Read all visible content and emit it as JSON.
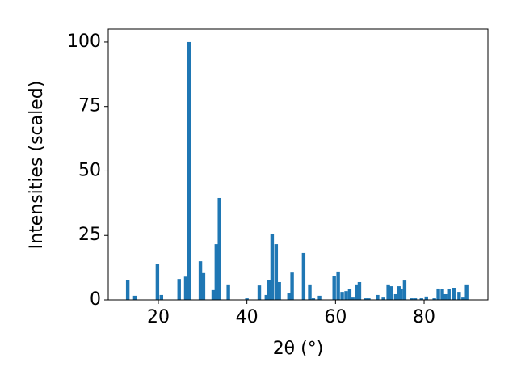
{
  "chart_data": {
    "type": "bar",
    "x_label": "2θ (°)",
    "y_label": "Intensities (scaled)",
    "color": "#1f77b4",
    "x": [
      13.1,
      14.7,
      19.8,
      20.7,
      24.7,
      26.2,
      26.9,
      29.5,
      30.2,
      32.4,
      33.1,
      33.8,
      35.8,
      40.0,
      42.8,
      44.4,
      45.0,
      45.7,
      46.6,
      47.3,
      49.5,
      50.2,
      52.8,
      54.2,
      55.0,
      56.4,
      59.7,
      60.6,
      61.5,
      62.4,
      63.2,
      63.9,
      64.8,
      65.4,
      66.8,
      67.5,
      69.5,
      70.8,
      71.9,
      72.6,
      73.6,
      74.3,
      74.8,
      75.6,
      77.2,
      78.0,
      79.4,
      80.5,
      82.3,
      83.2,
      84.1,
      84.8,
      85.6,
      86.7,
      87.9,
      88.8,
      89.6
    ],
    "values": [
      7.8,
      1.6,
      13.8,
      1.9,
      8.1,
      9,
      100,
      15,
      10.4,
      3.8,
      21.6,
      39.5,
      6,
      0.6,
      5.6,
      1.9,
      7.8,
      25.4,
      21.6,
      6.9,
      2.5,
      10.6,
      18.2,
      6,
      0.6,
      1.6,
      9.4,
      11,
      3.1,
      3.4,
      4.1,
      0.9,
      6,
      6.9,
      0.6,
      0.6,
      1.9,
      0.9,
      6,
      5.3,
      2.2,
      5.3,
      4.4,
      7.5,
      0.6,
      0.6,
      0.6,
      1.3,
      0.6,
      4.4,
      4.1,
      2.2,
      4.1,
      4.7,
      3.1,
      0.9,
      6
    ],
    "xlim": [
      8.7,
      94.4
    ],
    "ylim": [
      0,
      105
    ],
    "xticks": [
      20,
      40,
      60,
      80
    ],
    "yticks": [
      0,
      25,
      50,
      75,
      100
    ]
  }
}
